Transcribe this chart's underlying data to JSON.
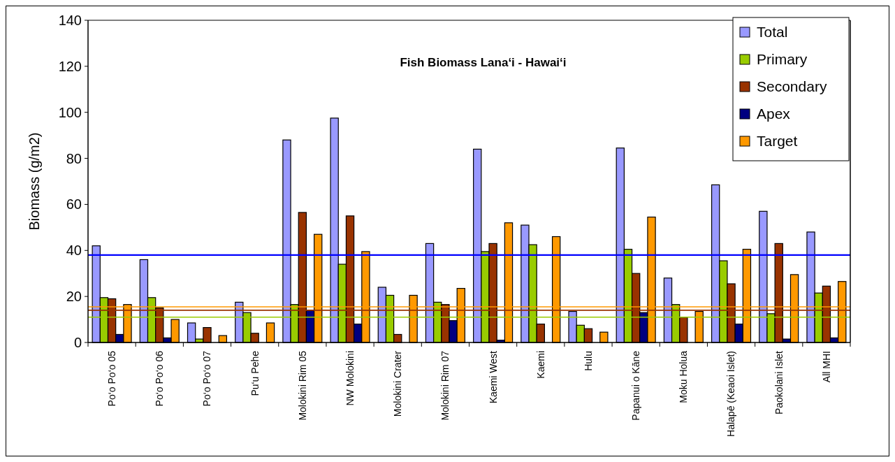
{
  "chart_data": {
    "type": "bar",
    "title": "Fish Biomass Lana‘i - Hawai‘i",
    "ylabel": "Biomass (g/m2)",
    "categories": [
      "Po‘o Po‘o 05",
      "Po‘o Po‘o 06",
      "Po‘o Po‘o 07",
      "Pu‘u Pehe",
      "Molokini Rim 05",
      "NW Molokini",
      "Molokini Crater",
      "Molokini Rim 07",
      "Kaemi West",
      "Kaemi",
      "Hulu",
      "Papanui o Kāne",
      "Moku Holua",
      "Halapē (Keaoi Islet)",
      "Paokolani Islet",
      "All MHI"
    ],
    "series": [
      {
        "name": "Total",
        "color": "#9999ff",
        "values": [
          42,
          36,
          8.5,
          17.5,
          88,
          97.5,
          24,
          43,
          84,
          51,
          13.5,
          84.5,
          28,
          68.5,
          57,
          48
        ]
      },
      {
        "name": "Primary",
        "color": "#99cc00",
        "values": [
          19.5,
          19.5,
          1.5,
          13,
          16.5,
          34,
          20.5,
          17.5,
          39.5,
          42.5,
          7.5,
          40.5,
          16.5,
          35.5,
          12.5,
          21.5
        ]
      },
      {
        "name": "Secondary",
        "color": "#993300",
        "values": [
          19,
          15,
          6.5,
          4,
          56.5,
          55,
          3.5,
          16.5,
          43,
          8,
          6,
          30,
          11,
          25.5,
          43,
          24.5
        ]
      },
      {
        "name": "Apex",
        "color": "#000080",
        "values": [
          3.5,
          2,
          null,
          null,
          14,
          8,
          0,
          9.5,
          1,
          0,
          0,
          13,
          0,
          8,
          1.5,
          2
        ]
      },
      {
        "name": "Target",
        "color": "#ff9900",
        "values": [
          16.5,
          10,
          3,
          8.5,
          47,
          39.5,
          20.5,
          23.5,
          52,
          46,
          4.5,
          54.5,
          13.5,
          40.5,
          29.5,
          26.5
        ]
      }
    ],
    "ylim": [
      0,
      140
    ],
    "yticks": [
      0,
      20,
      40,
      60,
      80,
      100,
      120,
      140
    ],
    "ref_lines": [
      {
        "axis": "y",
        "value": 38,
        "color": "#0000ff"
      },
      {
        "axis": "y",
        "value": 15.5,
        "color": "#ff9900"
      },
      {
        "axis": "y",
        "value": 14,
        "color": "#993300"
      },
      {
        "axis": "y",
        "value": 11,
        "color": "#99cc00"
      }
    ],
    "legend": "top right",
    "grid": false
  }
}
